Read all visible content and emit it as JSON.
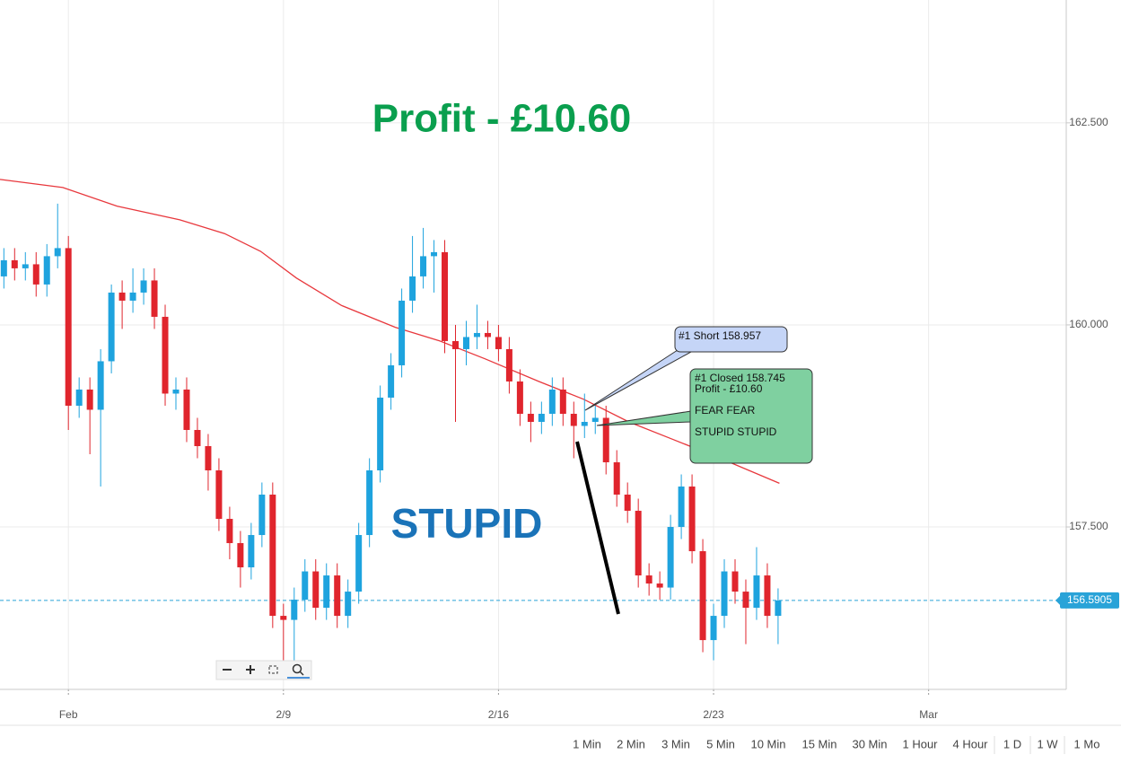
{
  "chart_data": {
    "type": "candlestick",
    "x": [
      -1.5,
      -1.25,
      -1,
      -0.75,
      -0.5,
      -0.25,
      0,
      0.25,
      0.5,
      0.75,
      1,
      1.25,
      1.5,
      1.75,
      2,
      2.25,
      2.5,
      2.75,
      3,
      3.25,
      3.5,
      3.75,
      4,
      4.25,
      4.5,
      4.75,
      5,
      5.25,
      5.5,
      5.75,
      6,
      6.25,
      6.5,
      6.75,
      7,
      7.25,
      7.5,
      7.75,
      8,
      8.25,
      8.5,
      8.75,
      9,
      9.25,
      9.5,
      9.75,
      10,
      10.25,
      10.5,
      10.75,
      11,
      11.25,
      11.5,
      11.75,
      12,
      12.25,
      12.5,
      12.75,
      13,
      13.25,
      13.5,
      13.75,
      14,
      14.25,
      14.5,
      14.75,
      15,
      15.25,
      15.5,
      15.75,
      16,
      16.25,
      16.5
    ],
    "open": [
      160.6,
      160.8,
      160.7,
      160.75,
      160.5,
      160.85,
      160.95,
      159.0,
      159.2,
      158.95,
      159.55,
      160.4,
      160.3,
      160.4,
      160.55,
      160.1,
      159.15,
      159.2,
      158.7,
      158.5,
      158.2,
      157.6,
      157.3,
      157.0,
      157.4,
      157.9,
      156.4,
      156.35,
      156.6,
      156.95,
      156.5,
      156.9,
      156.4,
      156.7,
      157.4,
      158.2,
      159.1,
      159.5,
      160.3,
      160.6,
      160.85,
      160.9,
      159.8,
      159.7,
      159.85,
      159.9,
      159.85,
      159.7,
      159.3,
      158.9,
      158.8,
      158.9,
      159.2,
      158.9,
      158.75,
      158.8,
      158.85,
      158.3,
      157.9,
      157.7,
      156.9,
      156.8,
      156.75,
      157.5,
      158.0,
      157.2,
      156.1,
      156.4,
      156.95,
      156.7,
      156.5,
      156.9,
      156.4
    ],
    "high": [
      160.95,
      160.95,
      160.9,
      160.9,
      161.0,
      161.5,
      161.1,
      159.35,
      159.35,
      159.7,
      160.5,
      160.55,
      160.7,
      160.7,
      160.7,
      160.25,
      159.35,
      159.35,
      158.85,
      158.65,
      158.35,
      157.75,
      157.45,
      157.55,
      158.05,
      158.05,
      156.55,
      156.75,
      157.1,
      157.1,
      157.05,
      157.05,
      156.85,
      157.55,
      158.35,
      159.25,
      159.65,
      160.45,
      161.1,
      161.2,
      161.05,
      161.05,
      160.0,
      160.05,
      160.25,
      160.05,
      160.0,
      159.85,
      159.45,
      159.05,
      159.05,
      159.35,
      159.35,
      159.05,
      159.15,
      159.0,
      159.0,
      158.45,
      158.05,
      157.85,
      157.05,
      156.95,
      157.65,
      158.15,
      158.15,
      157.35,
      156.55,
      157.1,
      157.1,
      156.85,
      157.25,
      157.05,
      156.74
    ],
    "low": [
      160.45,
      160.55,
      160.55,
      160.35,
      160.35,
      160.7,
      158.7,
      158.85,
      158.4,
      158.0,
      159.4,
      159.95,
      160.15,
      160.25,
      159.95,
      159.0,
      158.95,
      158.55,
      158.35,
      157.95,
      157.45,
      157.1,
      156.75,
      156.85,
      157.25,
      156.25,
      155.85,
      155.8,
      156.45,
      156.35,
      156.35,
      156.25,
      156.25,
      156.55,
      157.25,
      158.05,
      158.95,
      159.35,
      160.15,
      160.45,
      160.4,
      159.65,
      158.8,
      159.5,
      159.7,
      159.7,
      159.55,
      159.15,
      158.75,
      158.55,
      158.65,
      158.75,
      158.75,
      158.35,
      158.6,
      158.65,
      158.15,
      157.75,
      157.55,
      156.75,
      156.65,
      156.6,
      156.6,
      157.35,
      157.05,
      155.95,
      155.85,
      156.25,
      156.55,
      156.05,
      156.35,
      156.25,
      156.05
    ],
    "close": [
      160.8,
      160.7,
      160.75,
      160.5,
      160.85,
      160.95,
      159.0,
      159.2,
      158.95,
      159.55,
      160.4,
      160.3,
      160.4,
      160.55,
      160.1,
      159.15,
      159.2,
      158.7,
      158.5,
      158.2,
      157.6,
      157.3,
      157.0,
      157.4,
      157.9,
      156.4,
      156.35,
      156.6,
      156.95,
      156.5,
      156.9,
      156.4,
      156.7,
      157.4,
      158.2,
      159.1,
      159.5,
      160.3,
      160.6,
      160.85,
      160.9,
      159.8,
      159.7,
      159.85,
      159.9,
      159.85,
      159.7,
      159.3,
      158.9,
      158.8,
      158.9,
      159.2,
      158.9,
      158.75,
      158.8,
      158.85,
      158.3,
      157.9,
      157.7,
      156.9,
      156.8,
      156.75,
      157.5,
      158.0,
      157.2,
      156.1,
      156.4,
      156.95,
      156.7,
      156.5,
      156.9,
      156.4,
      156.59
    ],
    "up_color": "#1ea3de",
    "down_color": "#e0252d",
    "moving_average": {
      "color": "#e8383d",
      "x": [
        -1.59,
        -0.13,
        1.13,
        2.59,
        3.63,
        4.47,
        5.3,
        6.35,
        7.6,
        8.64,
        9.69,
        10.94,
        11.98,
        13.03,
        14.07,
        15.11,
        16.53
      ],
      "values": [
        161.8,
        161.7,
        161.47,
        161.3,
        161.13,
        160.91,
        160.58,
        160.24,
        159.97,
        159.8,
        159.58,
        159.3,
        159.08,
        158.8,
        158.58,
        158.36,
        158.04
      ]
    },
    "last_price": 156.5905,
    "last_price_color": "#29a3d8",
    "xlim": [
      -1.59,
      23.2
    ],
    "ylim": [
      155.49,
      164.02
    ],
    "xticks": [
      {
        "value": 0,
        "label": "Feb"
      },
      {
        "value": 5,
        "label": "2/9"
      },
      {
        "value": 10,
        "label": "2/16"
      },
      {
        "value": 15,
        "label": "2/23"
      },
      {
        "value": 20,
        "label": "Mar"
      }
    ],
    "yticks": [
      {
        "value": 157.5,
        "label": "157.500"
      },
      {
        "value": 160,
        "label": "160.000"
      },
      {
        "value": 162.5,
        "label": "162.500"
      }
    ],
    "grid": true,
    "annotations": {
      "headline": "Profit - £10.60",
      "stamp": "STUPID",
      "short_callout": "#1 Short 158.957",
      "closed_callout": [
        "#1 Closed 158.745",
        "Profit - £10.60",
        "FEAR FEAR",
        "STUPID STUPID"
      ]
    }
  },
  "toolbar": {
    "timeframes": [
      "1 Min",
      "2 Min",
      "3 Min",
      "5 Min",
      "10 Min",
      "15 Min",
      "30 Min",
      "1 Hour",
      "4 Hour",
      "1 D",
      "1 W",
      "1 Mo"
    ]
  }
}
